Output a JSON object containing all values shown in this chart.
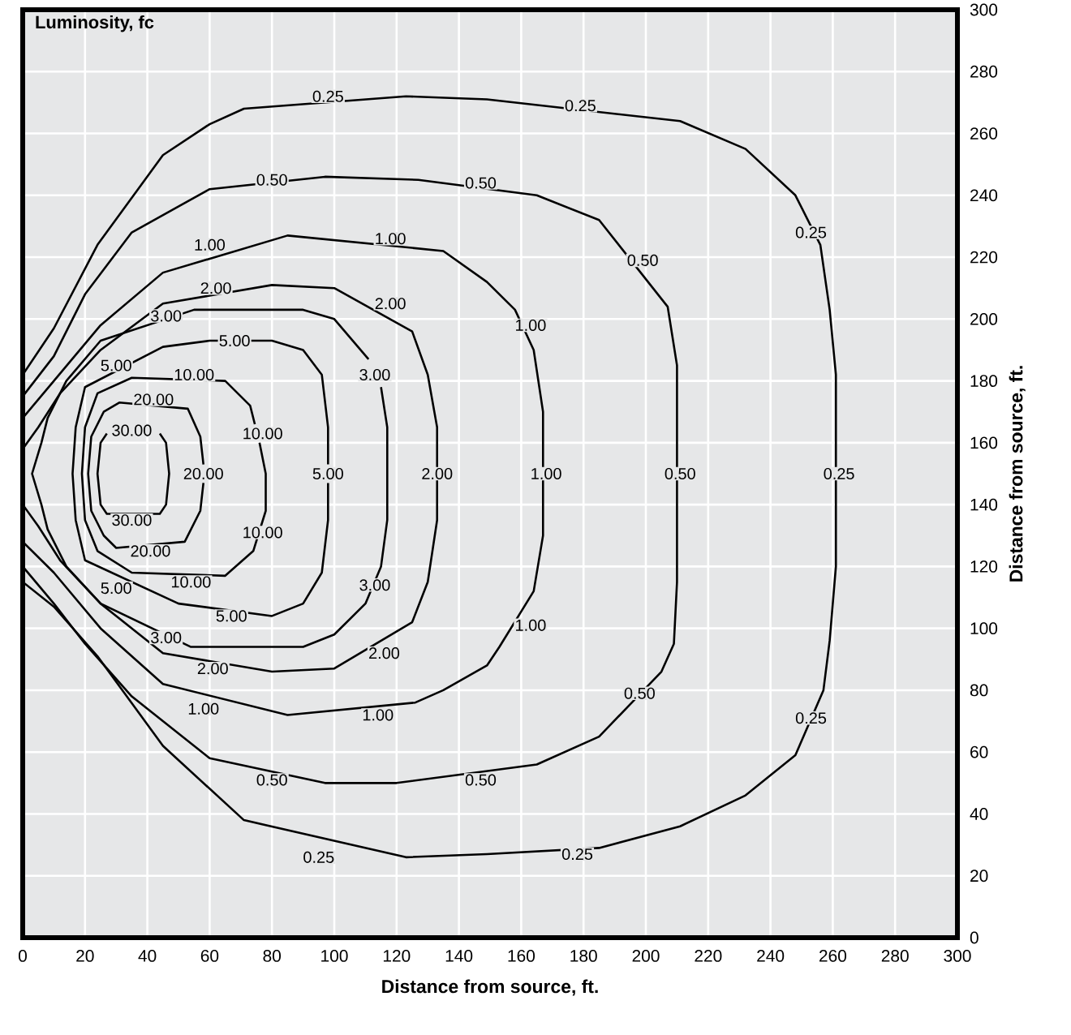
{
  "chart_data": {
    "type": "line",
    "title": "Luminosity, fc",
    "xlabel": "Distance from source, ft.",
    "ylabel": "Distance from source, ft.",
    "xlim": [
      0,
      300
    ],
    "ylim": [
      0,
      300
    ],
    "xticks": [
      0,
      20,
      40,
      60,
      80,
      100,
      120,
      140,
      160,
      180,
      200,
      220,
      240,
      260,
      280,
      300
    ],
    "yticks": [
      0,
      20,
      40,
      60,
      80,
      100,
      120,
      140,
      160,
      180,
      200,
      220,
      240,
      260,
      280,
      300
    ],
    "grid": true,
    "series": [
      {
        "color": "#000000",
        "x": [
          0,
          10,
          24,
          45,
          60,
          71,
          123,
          149,
          211,
          232,
          248,
          256,
          259,
          261,
          261,
          259,
          257,
          248,
          232,
          211,
          185,
          149,
          123,
          71,
          45,
          24,
          10,
          0
        ],
        "values": [
          182,
          197,
          224,
          253,
          263,
          268,
          272,
          271,
          264,
          255,
          240,
          224,
          203,
          182,
          120,
          96,
          80,
          59,
          46,
          36,
          29,
          27,
          26,
          38,
          62,
          91,
          107,
          115
        ]
      },
      {
        "color": "#000000",
        "x": [
          0,
          10,
          20,
          35,
          60,
          97,
          127,
          165,
          185,
          207,
          210,
          210,
          209,
          205,
          185,
          165,
          120,
          97,
          60,
          35,
          20,
          10,
          0
        ],
        "values": [
          175,
          188,
          208,
          228,
          242,
          246,
          245,
          240,
          232,
          204,
          185,
          115,
          95,
          86,
          65,
          56,
          50,
          50,
          58,
          78,
          95,
          108,
          120
        ]
      },
      {
        "color": "#000000",
        "x": [
          0,
          10,
          25,
          45,
          85,
          135,
          149,
          158,
          164,
          167,
          167,
          164,
          153,
          149,
          135,
          126,
          85,
          45,
          25,
          10,
          0
        ],
        "values": [
          168,
          180,
          198,
          215,
          227,
          222,
          212,
          203,
          190,
          170,
          130,
          112,
          94,
          88,
          80,
          76,
          72,
          82,
          100,
          118,
          128
        ]
      },
      {
        "color": "#000000",
        "x": [
          0,
          5,
          12,
          25,
          45,
          80,
          100,
          125,
          130,
          133,
          133,
          130,
          125,
          100,
          80,
          45,
          25,
          12,
          5,
          0
        ],
        "values": [
          158,
          165,
          176,
          190,
          205,
          211,
          210,
          196,
          182,
          165,
          135,
          115,
          102,
          87,
          86,
          92,
          108,
          122,
          133,
          140
        ]
      },
      {
        "color": "#000000",
        "x": [
          115,
          117,
          117,
          115,
          110,
          100,
          90,
          54,
          25,
          14,
          8,
          6,
          3,
          6,
          8,
          14,
          25,
          55,
          90,
          100,
          111
        ],
        "values": [
          178,
          165,
          135,
          120,
          108,
          98,
          94,
          94,
          108,
          120,
          132,
          140,
          150,
          160,
          168,
          180,
          193,
          203,
          203,
          200,
          187
        ]
      },
      {
        "color": "#000000",
        "x": [
          98,
          98,
          96,
          90,
          80,
          50,
          20,
          17,
          16,
          17,
          20,
          45,
          60,
          80,
          90,
          96,
          98,
          98
        ],
        "values": [
          147,
          135,
          118,
          108,
          104,
          108,
          122,
          135,
          150,
          165,
          178,
          191,
          193,
          193,
          190,
          182,
          165,
          153
        ]
      },
      {
        "color": "#000000",
        "x": [
          76,
          78,
          78,
          74,
          65,
          35,
          24,
          20,
          19,
          20,
          24,
          35,
          65,
          73,
          74.5
        ],
        "values": [
          160,
          150,
          138,
          125,
          117,
          118,
          125,
          135,
          150,
          165,
          176,
          181,
          180,
          172,
          166
        ]
      },
      {
        "color": "#000000",
        "x": [
          58,
          57,
          52,
          30,
          26,
          22,
          21,
          22,
          26,
          31,
          53,
          57,
          58
        ],
        "values": [
          147,
          138,
          128,
          126,
          130,
          138,
          150,
          162,
          170,
          173,
          171,
          162,
          153
        ]
      },
      {
        "color": "#000000",
        "x": [
          44,
          46,
          47,
          46,
          44,
          27,
          25,
          24,
          25,
          27
        ],
        "values": [
          163,
          160,
          150,
          140,
          137,
          137,
          140,
          150,
          160,
          163
        ]
      }
    ],
    "annotations": [
      {
        "text": "0.25",
        "x": 98,
        "y": 272
      },
      {
        "text": "0.25",
        "x": 179,
        "y": 269
      },
      {
        "text": "0.25",
        "x": 253,
        "y": 228
      },
      {
        "text": "0.25",
        "x": 262,
        "y": 150
      },
      {
        "text": "0.25",
        "x": 253,
        "y": 71
      },
      {
        "text": "0.25",
        "x": 178,
        "y": 27
      },
      {
        "text": "0.25",
        "x": 95,
        "y": 26
      },
      {
        "text": "0.50",
        "x": 80,
        "y": 245
      },
      {
        "text": "0.50",
        "x": 147,
        "y": 244
      },
      {
        "text": "0.50",
        "x": 199,
        "y": 219
      },
      {
        "text": "0.50",
        "x": 211,
        "y": 150
      },
      {
        "text": "0.50",
        "x": 198,
        "y": 79
      },
      {
        "text": "0.50",
        "x": 147,
        "y": 51
      },
      {
        "text": "0.50",
        "x": 80,
        "y": 51
      },
      {
        "text": "1.00",
        "x": 60,
        "y": 224
      },
      {
        "text": "1.00",
        "x": 118,
        "y": 226
      },
      {
        "text": "1.00",
        "x": 163,
        "y": 198
      },
      {
        "text": "1.00",
        "x": 168,
        "y": 150
      },
      {
        "text": "1.00",
        "x": 163,
        "y": 101
      },
      {
        "text": "1.00",
        "x": 114,
        "y": 72
      },
      {
        "text": "1.00",
        "x": 58,
        "y": 74
      },
      {
        "text": "2.00",
        "x": 62,
        "y": 210
      },
      {
        "text": "2.00",
        "x": 118,
        "y": 205
      },
      {
        "text": "2.00",
        "x": 133,
        "y": 150
      },
      {
        "text": "2.00",
        "x": 116,
        "y": 92
      },
      {
        "text": "2.00",
        "x": 61,
        "y": 87
      },
      {
        "text": "3.00",
        "x": 46,
        "y": 201
      },
      {
        "text": "3.00",
        "x": 113,
        "y": 182
      },
      {
        "text": "3.00",
        "x": 113,
        "y": 114
      },
      {
        "text": "3.00",
        "x": 46,
        "y": 97
      },
      {
        "text": "5.00",
        "x": 30,
        "y": 185
      },
      {
        "text": "5.00",
        "x": 68,
        "y": 193
      },
      {
        "text": "5.00",
        "x": 98,
        "y": 150
      },
      {
        "text": "5.00",
        "x": 67,
        "y": 104
      },
      {
        "text": "5.00",
        "x": 30,
        "y": 113
      },
      {
        "text": "10.00",
        "x": 55,
        "y": 182
      },
      {
        "text": "10.00",
        "x": 77,
        "y": 163
      },
      {
        "text": "10.00",
        "x": 77,
        "y": 131
      },
      {
        "text": "10.00",
        "x": 54,
        "y": 115
      },
      {
        "text": "20.00",
        "x": 42,
        "y": 174
      },
      {
        "text": "20.00",
        "x": 58,
        "y": 150
      },
      {
        "text": "20.00",
        "x": 41,
        "y": 125
      },
      {
        "text": "30.00",
        "x": 35,
        "y": 164
      },
      {
        "text": "30.00",
        "x": 35,
        "y": 135
      }
    ]
  }
}
